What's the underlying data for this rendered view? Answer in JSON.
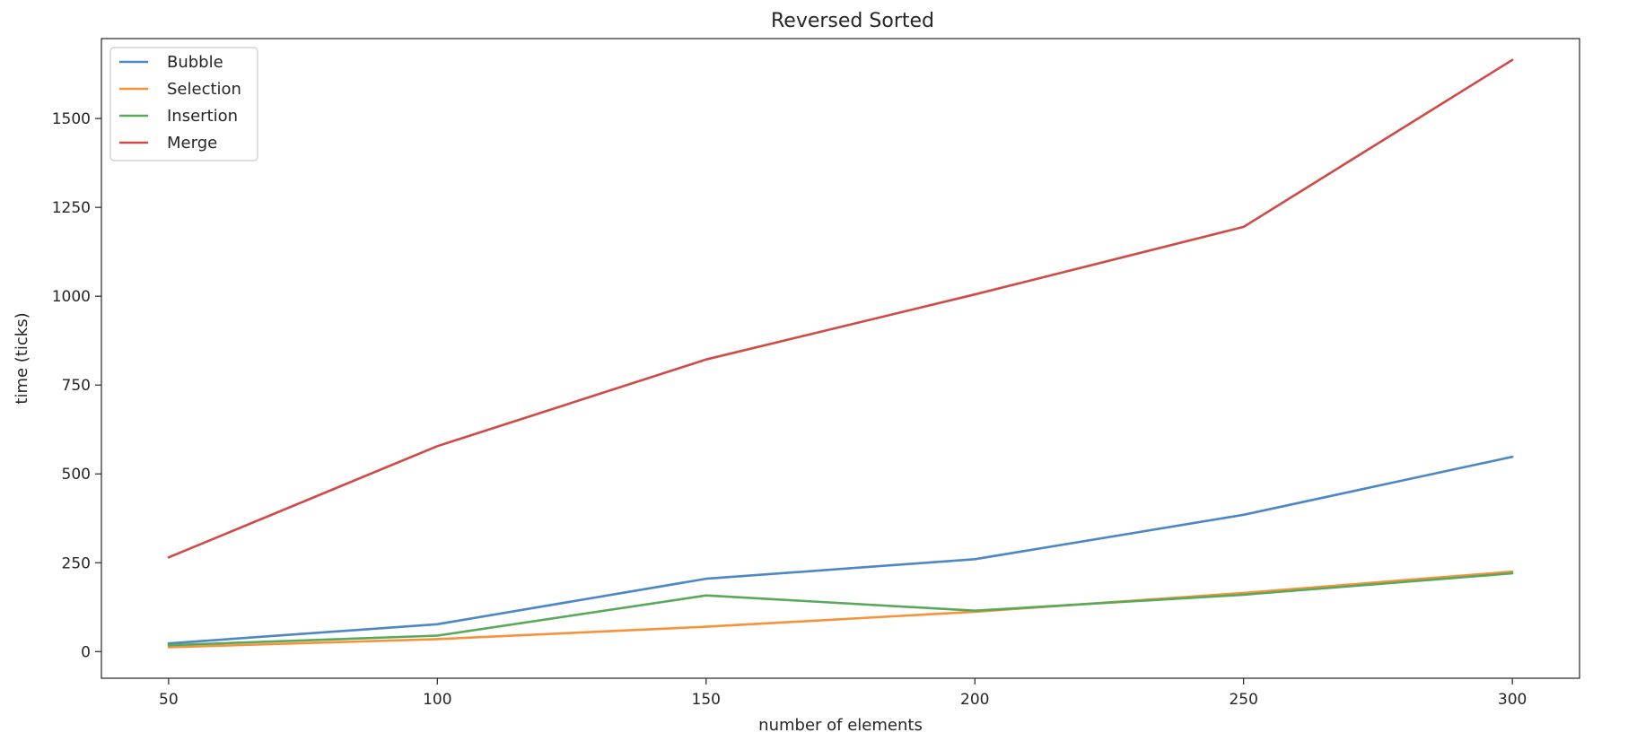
{
  "chart_data": {
    "type": "line",
    "title": "Reversed Sorted",
    "xlabel": "number of elements",
    "ylabel": "time (ticks)",
    "x": [
      50,
      100,
      150,
      200,
      250,
      300
    ],
    "xticks": [
      50,
      100,
      150,
      200,
      250,
      300
    ],
    "yticks": [
      0,
      250,
      500,
      750,
      1000,
      1250,
      1500
    ],
    "xlim": [
      37.5,
      312.5
    ],
    "ylim": [
      -75,
      1725
    ],
    "grid": false,
    "legend_position": "top-left",
    "series": [
      {
        "name": "Bubble",
        "color": "#4e88c4",
        "values": [
          23,
          77,
          205,
          260,
          385,
          548
        ]
      },
      {
        "name": "Selection",
        "color": "#f6923a",
        "values": [
          12,
          35,
          70,
          112,
          165,
          225
        ]
      },
      {
        "name": "Insertion",
        "color": "#5aa95a",
        "values": [
          18,
          45,
          158,
          115,
          160,
          220
        ]
      },
      {
        "name": "Merge",
        "color": "#d04a46",
        "values": [
          265,
          578,
          822,
          1005,
          1195,
          1665
        ]
      }
    ]
  }
}
